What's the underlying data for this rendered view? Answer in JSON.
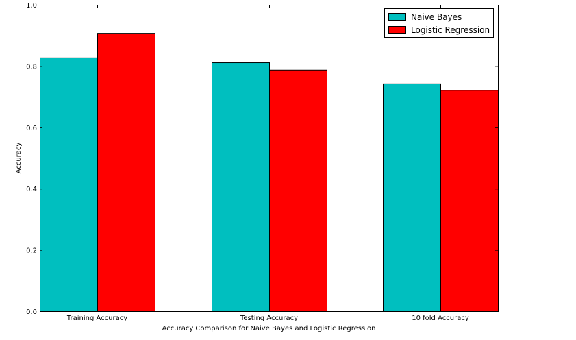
{
  "chart_data": {
    "type": "bar",
    "title": "",
    "xlabel": "Accuracy Comparison for Naive Bayes and Logistic Regression",
    "ylabel": "Accuracy",
    "categories": [
      "Training Accuracy",
      "Testing Accuracy",
      "10 fold Accuracy"
    ],
    "series": [
      {
        "name": "Naive Bayes",
        "color": "#00bfbf",
        "values": [
          0.828,
          0.812,
          0.743
        ]
      },
      {
        "name": "Logistic Regression",
        "color": "#ff0000",
        "values": [
          0.908,
          0.788,
          0.722
        ]
      }
    ],
    "ylim": [
      0.0,
      1.0
    ],
    "yticks": [
      "0.0",
      "0.2",
      "0.4",
      "0.6",
      "0.8",
      "1.0"
    ],
    "grid": false,
    "legend_position": "top-right"
  }
}
